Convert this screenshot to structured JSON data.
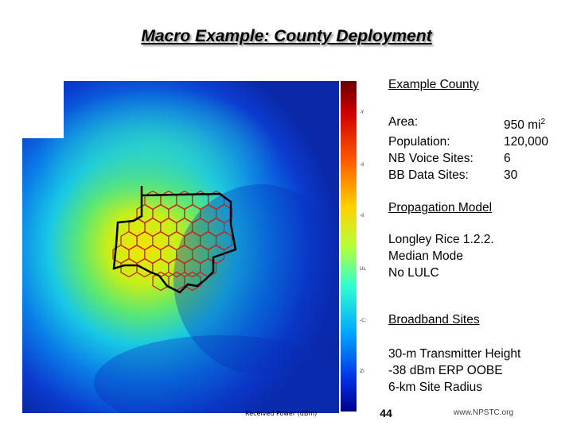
{
  "slide": {
    "title": "Macro Example: County Deployment",
    "page_number": "44",
    "website": "www.NPSTC.org"
  },
  "map": {
    "colorbar_caption": "Received Power (dBm)",
    "colorbar_ticks": [
      "-Y",
      "-Ii",
      "-Ii",
      "UL",
      "-C:",
      "Zi"
    ],
    "colors": {
      "high_signal": "#c81a0a",
      "mid_signal": "#f0d200",
      "low_signal": "#0a3cd2",
      "county_boundary": "#000000",
      "hex_cells": "#c81e1e"
    }
  },
  "county": {
    "heading": "Example County",
    "stats": [
      {
        "label": "Area:",
        "value": "950 mi",
        "sup": "2"
      },
      {
        "label": "Population:",
        "value": "120,000",
        "sup": ""
      },
      {
        "label": "NB Voice Sites:",
        "value": "6",
        "sup": ""
      },
      {
        "label": "BB Data Sites:",
        "value": "30",
        "sup": ""
      }
    ]
  },
  "propagation": {
    "heading": "Propagation Model",
    "lines": [
      "Longley Rice 1.2.2.",
      "Median Mode",
      "No LULC"
    ]
  },
  "broadband": {
    "heading": "Broadband Sites",
    "lines": [
      "30-m Transmitter Height",
      "-38 dBm ERP OOBE",
      "6-km Site Radius"
    ]
  }
}
